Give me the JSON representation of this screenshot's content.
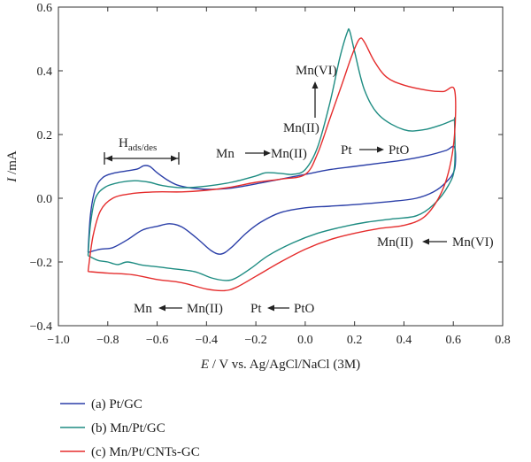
{
  "chart_data": {
    "type": "line",
    "subtype": "cyclic-voltammogram",
    "xlabel_italic": "E",
    "xlabel_rest": " / V vs. Ag/AgCl/NaCl (3M)",
    "ylabel_italic": "I",
    "ylabel_rest": " /mA",
    "xlim": [
      -1.0,
      0.8
    ],
    "ylim": [
      -0.4,
      0.6
    ],
    "xticks": [
      -1.0,
      -0.8,
      -0.6,
      -0.4,
      -0.2,
      0.0,
      0.2,
      0.4,
      0.6,
      0.8
    ],
    "xtick_labels": [
      "−1.0",
      "−0.8",
      "−0.6",
      "−0.4",
      "−0.2",
      "0.0",
      "0.2",
      "0.4",
      "0.6",
      "0.8"
    ],
    "yticks": [
      -0.4,
      -0.2,
      0.0,
      0.2,
      0.4,
      0.6
    ],
    "ytick_labels": [
      "−0.4",
      "−0.2",
      "0.0",
      "0.2",
      "0.4",
      "0.6"
    ],
    "grid": false,
    "legend_position": "bottom-left, below plot",
    "series": [
      {
        "name": "(a) Pt/GC",
        "color": "#2b3fa8",
        "points": [
          [
            -0.88,
            -0.17
          ],
          [
            -0.87,
            -0.05
          ],
          [
            -0.85,
            0.03
          ],
          [
            -0.82,
            0.065
          ],
          [
            -0.78,
            0.078
          ],
          [
            -0.73,
            0.085
          ],
          [
            -0.68,
            0.092
          ],
          [
            -0.655,
            0.102
          ],
          [
            -0.63,
            0.1
          ],
          [
            -0.6,
            0.08
          ],
          [
            -0.56,
            0.058
          ],
          [
            -0.52,
            0.042
          ],
          [
            -0.46,
            0.032
          ],
          [
            -0.38,
            0.028
          ],
          [
            -0.3,
            0.032
          ],
          [
            -0.2,
            0.045
          ],
          [
            -0.1,
            0.06
          ],
          [
            0.0,
            0.075
          ],
          [
            0.1,
            0.09
          ],
          [
            0.2,
            0.1
          ],
          [
            0.3,
            0.11
          ],
          [
            0.4,
            0.12
          ],
          [
            0.5,
            0.135
          ],
          [
            0.57,
            0.15
          ],
          [
            0.605,
            0.16
          ],
          [
            0.605,
            0.09
          ],
          [
            0.57,
            0.05
          ],
          [
            0.52,
            0.02
          ],
          [
            0.45,
            0.0
          ],
          [
            0.35,
            -0.01
          ],
          [
            0.2,
            -0.02
          ],
          [
            0.1,
            -0.025
          ],
          [
            0.0,
            -0.03
          ],
          [
            -0.1,
            -0.045
          ],
          [
            -0.18,
            -0.075
          ],
          [
            -0.24,
            -0.11
          ],
          [
            -0.3,
            -0.155
          ],
          [
            -0.34,
            -0.175
          ],
          [
            -0.38,
            -0.165
          ],
          [
            -0.44,
            -0.125
          ],
          [
            -0.5,
            -0.09
          ],
          [
            -0.55,
            -0.08
          ],
          [
            -0.6,
            -0.088
          ],
          [
            -0.66,
            -0.1
          ],
          [
            -0.72,
            -0.13
          ],
          [
            -0.78,
            -0.155
          ],
          [
            -0.83,
            -0.16
          ],
          [
            -0.88,
            -0.17
          ]
        ]
      },
      {
        "name": "(b) Mn/Pt/GC",
        "color": "#1e8c82",
        "points": [
          [
            -0.88,
            -0.18
          ],
          [
            -0.87,
            -0.08
          ],
          [
            -0.85,
            0.0
          ],
          [
            -0.81,
            0.035
          ],
          [
            -0.75,
            0.05
          ],
          [
            -0.69,
            0.055
          ],
          [
            -0.63,
            0.05
          ],
          [
            -0.58,
            0.04
          ],
          [
            -0.5,
            0.033
          ],
          [
            -0.4,
            0.038
          ],
          [
            -0.3,
            0.05
          ],
          [
            -0.2,
            0.07
          ],
          [
            -0.16,
            0.08
          ],
          [
            -0.1,
            0.078
          ],
          [
            -0.05,
            0.075
          ],
          [
            0.0,
            0.09
          ],
          [
            0.05,
            0.16
          ],
          [
            0.1,
            0.3
          ],
          [
            0.14,
            0.44
          ],
          [
            0.17,
            0.52
          ],
          [
            0.18,
            0.525
          ],
          [
            0.2,
            0.46
          ],
          [
            0.24,
            0.34
          ],
          [
            0.3,
            0.26
          ],
          [
            0.4,
            0.215
          ],
          [
            0.48,
            0.215
          ],
          [
            0.55,
            0.23
          ],
          [
            0.6,
            0.245
          ],
          [
            0.605,
            0.24
          ],
          [
            0.605,
            0.1
          ],
          [
            0.58,
            0.04
          ],
          [
            0.52,
            -0.02
          ],
          [
            0.45,
            -0.055
          ],
          [
            0.35,
            -0.065
          ],
          [
            0.25,
            -0.075
          ],
          [
            0.15,
            -0.09
          ],
          [
            0.05,
            -0.11
          ],
          [
            -0.05,
            -0.14
          ],
          [
            -0.15,
            -0.18
          ],
          [
            -0.22,
            -0.22
          ],
          [
            -0.28,
            -0.25
          ],
          [
            -0.32,
            -0.258
          ],
          [
            -0.38,
            -0.25
          ],
          [
            -0.45,
            -0.23
          ],
          [
            -0.55,
            -0.22
          ],
          [
            -0.6,
            -0.215
          ],
          [
            -0.66,
            -0.21
          ],
          [
            -0.72,
            -0.2
          ],
          [
            -0.76,
            -0.208
          ],
          [
            -0.8,
            -0.2
          ],
          [
            -0.84,
            -0.195
          ],
          [
            -0.88,
            -0.18
          ]
        ]
      },
      {
        "name": "(c) Mn/Pt/CNTs-GC",
        "color": "#e52d2d",
        "points": [
          [
            -0.88,
            -0.23
          ],
          [
            -0.86,
            -0.12
          ],
          [
            -0.83,
            -0.04
          ],
          [
            -0.78,
            0.0
          ],
          [
            -0.7,
            0.015
          ],
          [
            -0.6,
            0.02
          ],
          [
            -0.5,
            0.02
          ],
          [
            -0.4,
            0.025
          ],
          [
            -0.3,
            0.035
          ],
          [
            -0.2,
            0.05
          ],
          [
            -0.1,
            0.06
          ],
          [
            0.0,
            0.075
          ],
          [
            0.05,
            0.14
          ],
          [
            0.1,
            0.25
          ],
          [
            0.15,
            0.36
          ],
          [
            0.19,
            0.45
          ],
          [
            0.22,
            0.5
          ],
          [
            0.24,
            0.49
          ],
          [
            0.28,
            0.43
          ],
          [
            0.33,
            0.38
          ],
          [
            0.4,
            0.355
          ],
          [
            0.5,
            0.338
          ],
          [
            0.56,
            0.335
          ],
          [
            0.605,
            0.34
          ],
          [
            0.605,
            0.2
          ],
          [
            0.58,
            0.08
          ],
          [
            0.54,
            0.0
          ],
          [
            0.48,
            -0.06
          ],
          [
            0.4,
            -0.085
          ],
          [
            0.3,
            -0.095
          ],
          [
            0.2,
            -0.11
          ],
          [
            0.1,
            -0.13
          ],
          [
            0.0,
            -0.16
          ],
          [
            -0.1,
            -0.2
          ],
          [
            -0.2,
            -0.245
          ],
          [
            -0.28,
            -0.28
          ],
          [
            -0.33,
            -0.29
          ],
          [
            -0.4,
            -0.285
          ],
          [
            -0.5,
            -0.265
          ],
          [
            -0.6,
            -0.255
          ],
          [
            -0.7,
            -0.24
          ],
          [
            -0.8,
            -0.235
          ],
          [
            -0.88,
            -0.23
          ]
        ]
      }
    ],
    "annotations": {
      "hads_main": "H",
      "hads_sub": "ads/des",
      "mn_vi": "Mn(VI)",
      "mn_ii": "Mn(II)",
      "mn_ox_left": "Mn",
      "mn_ox_right": "Mn(II)",
      "pt_ox_left": "Pt",
      "pt_ox_right": "PtO",
      "red_mn_left": "Mn(II)",
      "red_mn_right": "Mn(VI)",
      "red_mnii_left": "Mn",
      "red_mnii_right": "Mn(II)",
      "red_pt_left": "Pt",
      "red_pt_right": "PtO"
    }
  }
}
